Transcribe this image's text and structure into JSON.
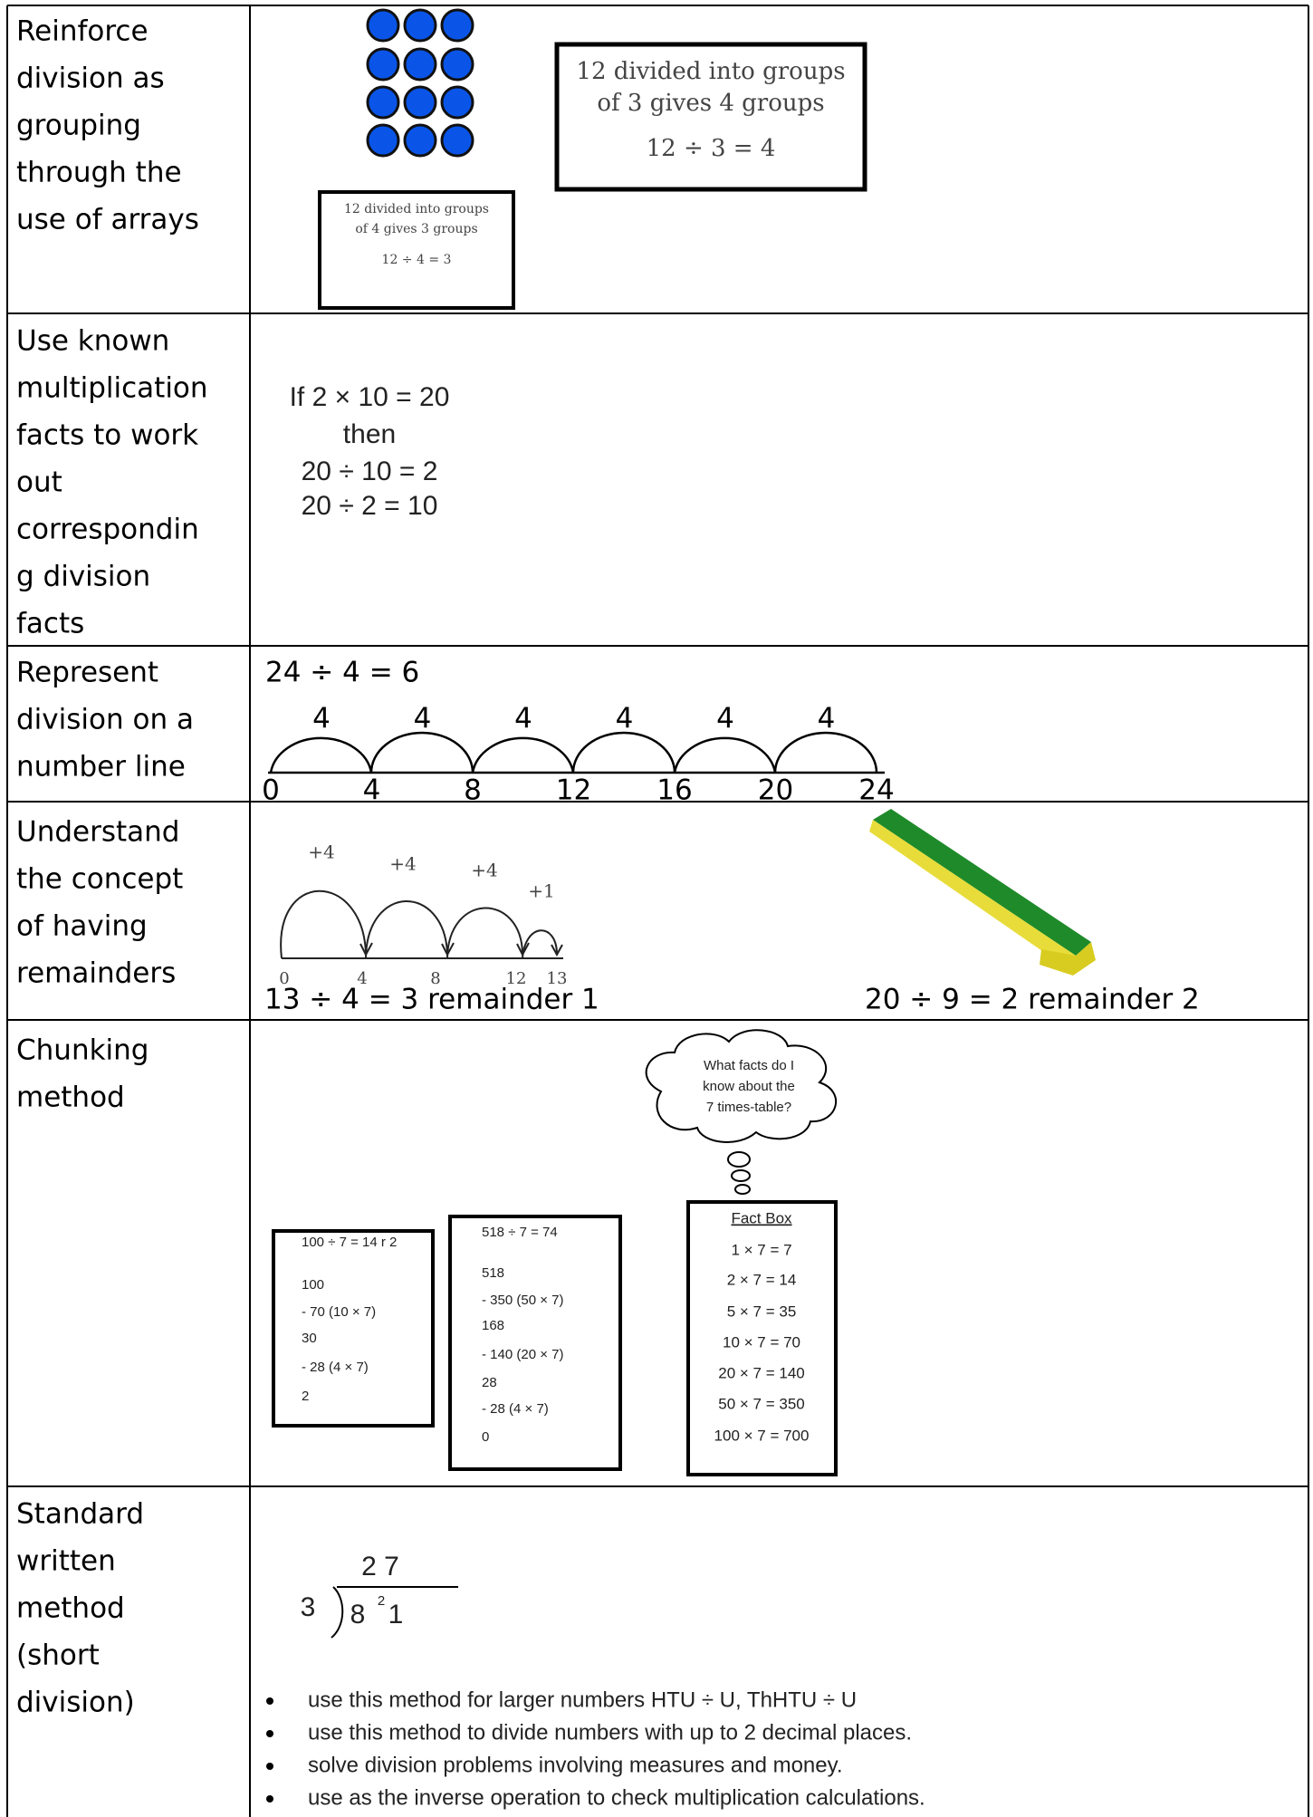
{
  "table": {
    "rows": [
      {
        "label": [
          "Reinforce",
          "division as",
          "grouping",
          "through the",
          "use of arrays"
        ],
        "content": {
          "box_large": [
            "12 divided into groups",
            "of 3 gives 4 groups",
            "12 ÷ 3 = 4"
          ],
          "box_small": [
            "12 divided into groups",
            "of 4 gives 3 groups",
            "12 ÷ 4 = 3"
          ]
        }
      },
      {
        "label": [
          "Use known",
          "multiplication",
          "facts to work",
          "out",
          "correspondin",
          "g division",
          "facts"
        ],
        "content": {
          "lines": [
            "If 2 × 10 = 20",
            "then",
            "20 ÷ 10 = 2",
            "20 ÷ 2 = 10"
          ]
        }
      },
      {
        "label": [
          "Represent",
          "division on a",
          "number line"
        ],
        "content": {
          "equation": "24 ÷ 4 = 6",
          "jump_labels": [
            "4",
            "4",
            "4",
            "4",
            "4",
            "4"
          ],
          "tick_labels": [
            "0",
            "4",
            "8",
            "12",
            "16",
            "20",
            "24"
          ]
        }
      },
      {
        "label": [
          "Understand",
          "the concept",
          "of having",
          "remainders"
        ],
        "content": {
          "jump_labels": [
            "+4",
            "+4",
            "+4",
            "+1"
          ],
          "tick_labels": [
            "0",
            "4",
            "8",
            "12",
            "13"
          ],
          "captions": [
            "13 ÷ 4 = 3 remainder 1",
            "20 ÷ 9 = 2 remainder 2"
          ]
        }
      },
      {
        "label": [
          "Chunking",
          "method"
        ],
        "content": {
          "thought": [
            "What facts do I",
            "know about the",
            "7 times-table?"
          ],
          "box_a": [
            "100 ÷ 7 = 14 r 2",
            "100",
            "- 70  (10 × 7)",
            "30",
            "- 28  (4 × 7)",
            "2"
          ],
          "box_b": [
            "518 ÷ 7 = 74",
            "518",
            "- 350  (50 × 7)",
            "168",
            "- 140  (20 × 7)",
            "28",
            "- 28  (4 × 7)",
            "0"
          ],
          "fact_box": [
            "Fact Box",
            "1 × 7 = 7",
            "2 × 7 = 14",
            "5 × 7 = 35",
            "10 × 7 = 70",
            "20 × 7 = 140",
            "50 × 7 = 350",
            "100 × 7 = 700"
          ]
        }
      },
      {
        "label": [
          "Standard",
          "written",
          "method",
          "(short",
          "division)"
        ],
        "content": {
          "quotient": "2 7",
          "divisor": "3",
          "dividend": "8",
          "carry": "2",
          "dividend_last": "1",
          "bullets": [
            "use this method for larger numbers HTU ÷ U, ThHTU ÷ U",
            "use this method to divide numbers with up to 2 decimal places.",
            "solve division problems involving measures and money.",
            "use as the inverse operation to check multiplication calculations."
          ]
        }
      }
    ]
  }
}
